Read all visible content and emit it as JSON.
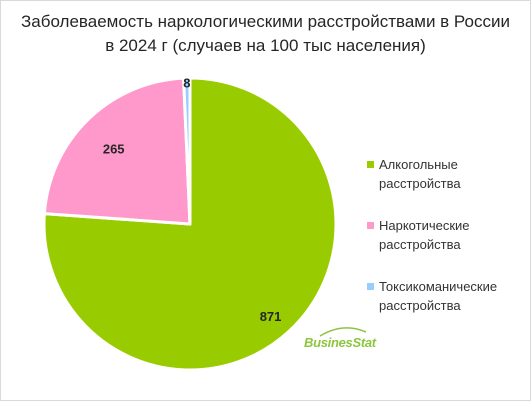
{
  "chart_data": {
    "type": "pie",
    "title": "Заболеваемость наркологическими расстройствами в России в 2024 г (случаев на 100 тыс населения)",
    "title_lines": [
      "Заболеваемость наркологическими расстройствами в России",
      "в 2024 г (случаев на 100 тыс населения)"
    ],
    "slices": [
      {
        "label_lines": [
          "Алкогольные",
          "расстройства"
        ],
        "value": 871,
        "color": "#99cc00"
      },
      {
        "label_lines": [
          "Наркотические",
          "расстройства"
        ],
        "value": 265,
        "color": "#ff99cc"
      },
      {
        "label_lines": [
          "Токсикоманические",
          "расстройства"
        ],
        "value": 8,
        "color": "#99ccff"
      }
    ],
    "legend_position": "right",
    "start": "12 o'clock, clockwise"
  },
  "watermark": {
    "text": "BusinesStat",
    "color": "#8cc63f"
  }
}
